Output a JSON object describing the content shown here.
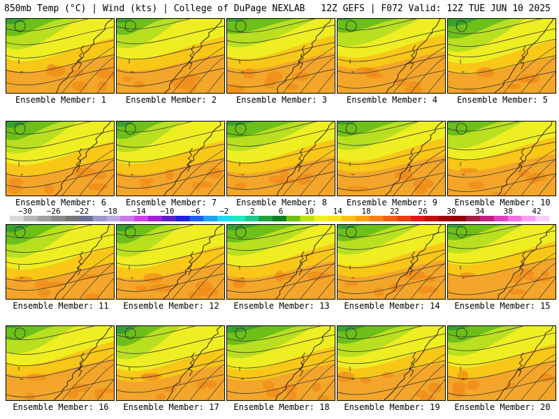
{
  "header": {
    "left_title": "850mb Temp (°C) | Wind (kts) | College of DuPage NEXLAB",
    "right_title": "12Z GEFS | F072 Valid: 12Z TUE JUN 10 2025"
  },
  "members": [
    {
      "caption": "Ensemble Member: 1"
    },
    {
      "caption": "Ensemble Member: 2"
    },
    {
      "caption": "Ensemble Member: 3"
    },
    {
      "caption": "Ensemble Member: 4"
    },
    {
      "caption": "Ensemble Member: 5"
    },
    {
      "caption": "Ensemble Member: 6"
    },
    {
      "caption": "Ensemble Member: 7"
    },
    {
      "caption": "Ensemble Member: 8"
    },
    {
      "caption": "Ensemble Member: 9"
    },
    {
      "caption": "Ensemble Member: 10"
    },
    {
      "caption": "Ensemble Member: 11"
    },
    {
      "caption": "Ensemble Member: 12"
    },
    {
      "caption": "Ensemble Member: 13"
    },
    {
      "caption": "Ensemble Member: 14"
    },
    {
      "caption": "Ensemble Member: 15"
    },
    {
      "caption": "Ensemble Member: 16"
    },
    {
      "caption": "Ensemble Member: 17"
    },
    {
      "caption": "Ensemble Member: 18"
    },
    {
      "caption": "Ensemble Member: 19"
    },
    {
      "caption": "Ensemble Member: 20"
    }
  ],
  "colorbar": {
    "labels": [
      "−30",
      "−26",
      "−22",
      "−18",
      "−14",
      "−10",
      "−6",
      "−2",
      "2",
      "6",
      "10",
      "14",
      "18",
      "22",
      "26",
      "30",
      "34",
      "38",
      "42"
    ],
    "colors": [
      "#d9d9d9",
      "#b8b8b8",
      "#a0a0a0",
      "#8a8a8a",
      "#767676",
      "#6e6e96",
      "#9a9ac8",
      "#b8a8e0",
      "#c87ae8",
      "#d040e8",
      "#a020d8",
      "#6020c8",
      "#2020e0",
      "#2060f0",
      "#20a0f0",
      "#20d8f0",
      "#20e8c0",
      "#20c890",
      "#20a040",
      "#108020",
      "#70c010",
      "#c0e010",
      "#f0f020",
      "#f8e020",
      "#f8c018",
      "#f8a010",
      "#f88010",
      "#f06010",
      "#e84010",
      "#e01818",
      "#c01010",
      "#a00808",
      "#900000",
      "#a02040",
      "#c02080",
      "#e040c0",
      "#f070e0",
      "#f8a0f0",
      "#f8d0f8"
    ]
  }
}
